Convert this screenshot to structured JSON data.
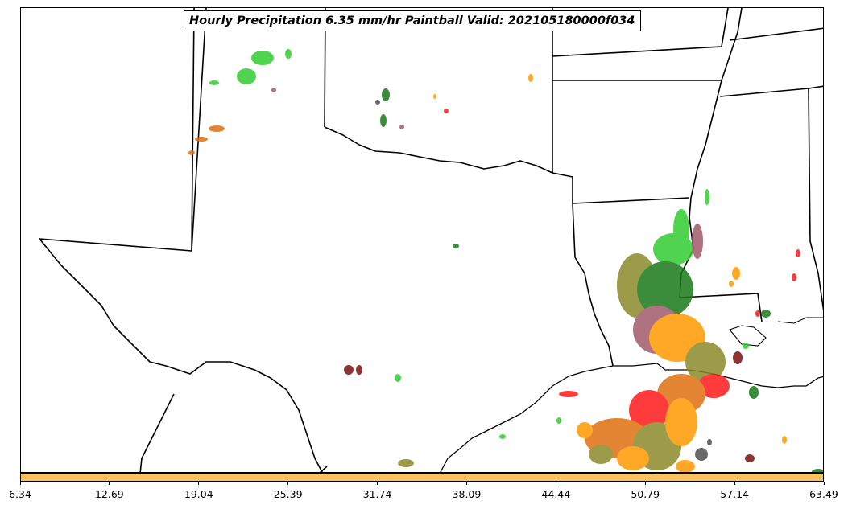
{
  "title": "Hourly Precipitation 6.35 mm/hr Paintball Valid: 202105180000f034",
  "colorbar": {
    "color": "#ffc060",
    "ticks": [
      "6.34",
      "12.69",
      "19.04",
      "25.39",
      "31.74",
      "38.09",
      "44.44",
      "50.79",
      "57.14",
      "63.49"
    ]
  },
  "palette": {
    "light_green": "#32cd32",
    "dark_green": "#1a7a1a",
    "olive": "#8a8a2a",
    "orange": "#ff9900",
    "dark_orange": "#e07010",
    "red": "#ff1a1a",
    "dark_red": "#7a1010",
    "mauve": "#a05a6a",
    "gray": "#505050"
  }
}
